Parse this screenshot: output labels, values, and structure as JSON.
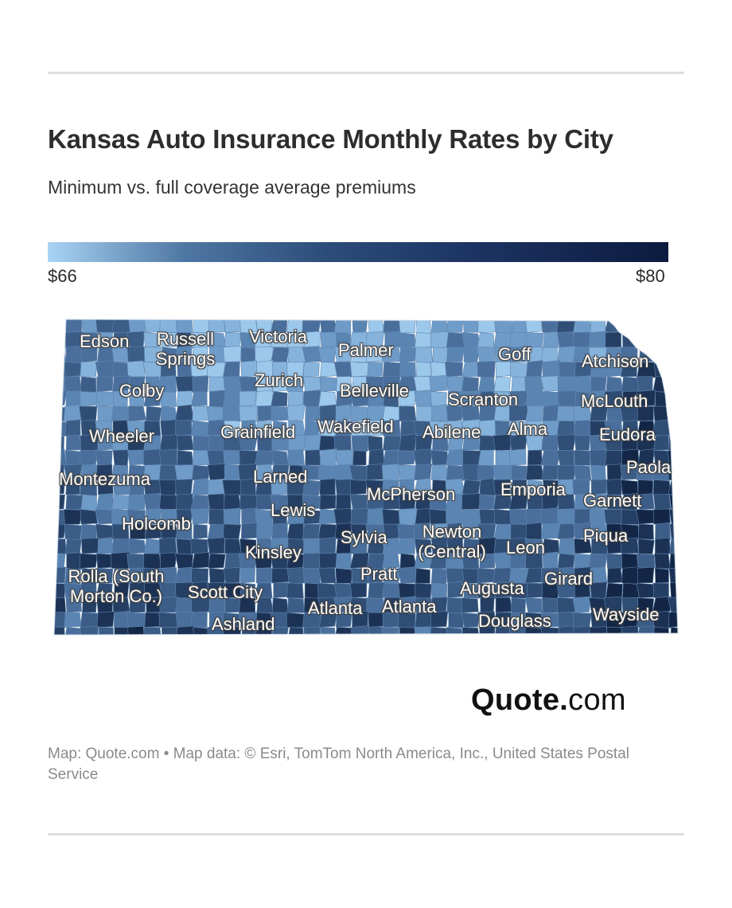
{
  "header": {
    "title": "Kansas Auto Insurance Monthly Rates by City",
    "subtitle": "Minimum vs. full coverage average premiums"
  },
  "legend": {
    "min_label": "$66",
    "max_label": "$80",
    "min_color": "#aad4f5",
    "max_color": "#0c1b3f"
  },
  "map": {
    "region": "Kansas",
    "cities": [
      {
        "id": "edson",
        "label": "Edson"
      },
      {
        "id": "russell-springs",
        "label": "Russell Springs"
      },
      {
        "id": "victoria",
        "label": "Victoria"
      },
      {
        "id": "palmer",
        "label": "Palmer"
      },
      {
        "id": "goff",
        "label": "Goff"
      },
      {
        "id": "atchison",
        "label": "Atchison"
      },
      {
        "id": "colby",
        "label": "Colby"
      },
      {
        "id": "zurich",
        "label": "Zurich"
      },
      {
        "id": "belleville",
        "label": "Belleville"
      },
      {
        "id": "scranton",
        "label": "Scranton"
      },
      {
        "id": "mclouth",
        "label": "McLouth"
      },
      {
        "id": "wheeler",
        "label": "Wheeler"
      },
      {
        "id": "grainfield",
        "label": "Grainfield"
      },
      {
        "id": "wakefield",
        "label": "Wakefield"
      },
      {
        "id": "abilene",
        "label": "Abilene"
      },
      {
        "id": "alma",
        "label": "Alma"
      },
      {
        "id": "eudora",
        "label": "Eudora"
      },
      {
        "id": "paola",
        "label": "Paola"
      },
      {
        "id": "montezuma",
        "label": "Montezuma"
      },
      {
        "id": "larned",
        "label": "Larned"
      },
      {
        "id": "mcpherson",
        "label": "McPherson"
      },
      {
        "id": "emporia",
        "label": "Emporia"
      },
      {
        "id": "garnett",
        "label": "Garnett"
      },
      {
        "id": "lewis",
        "label": "Lewis"
      },
      {
        "id": "holcomb",
        "label": "Holcomb"
      },
      {
        "id": "sylvia",
        "label": "Sylvia"
      },
      {
        "id": "newton",
        "label": "Newton (Central)"
      },
      {
        "id": "leon",
        "label": "Leon"
      },
      {
        "id": "piqua",
        "label": "Piqua"
      },
      {
        "id": "kinsley",
        "label": "Kinsley"
      },
      {
        "id": "pratt",
        "label": "Pratt"
      },
      {
        "id": "girard",
        "label": "Girard"
      },
      {
        "id": "rolla",
        "label": "Rolla (South Morton Co.)"
      },
      {
        "id": "scott-city",
        "label": "Scott City"
      },
      {
        "id": "augusta",
        "label": "Augusta"
      },
      {
        "id": "ashland",
        "label": "Ashland"
      },
      {
        "id": "atlanta-1",
        "label": "Atlanta"
      },
      {
        "id": "atlanta-2",
        "label": "Atlanta"
      },
      {
        "id": "douglass",
        "label": "Douglass"
      },
      {
        "id": "wayside",
        "label": "Wayside"
      }
    ]
  },
  "brand": {
    "name": "Quote",
    "dot": ".",
    "suffix": "com"
  },
  "credit": {
    "text": "Map: Quote.com • Map data: © Esri, TomTom North America, Inc., United States Postal Service"
  }
}
